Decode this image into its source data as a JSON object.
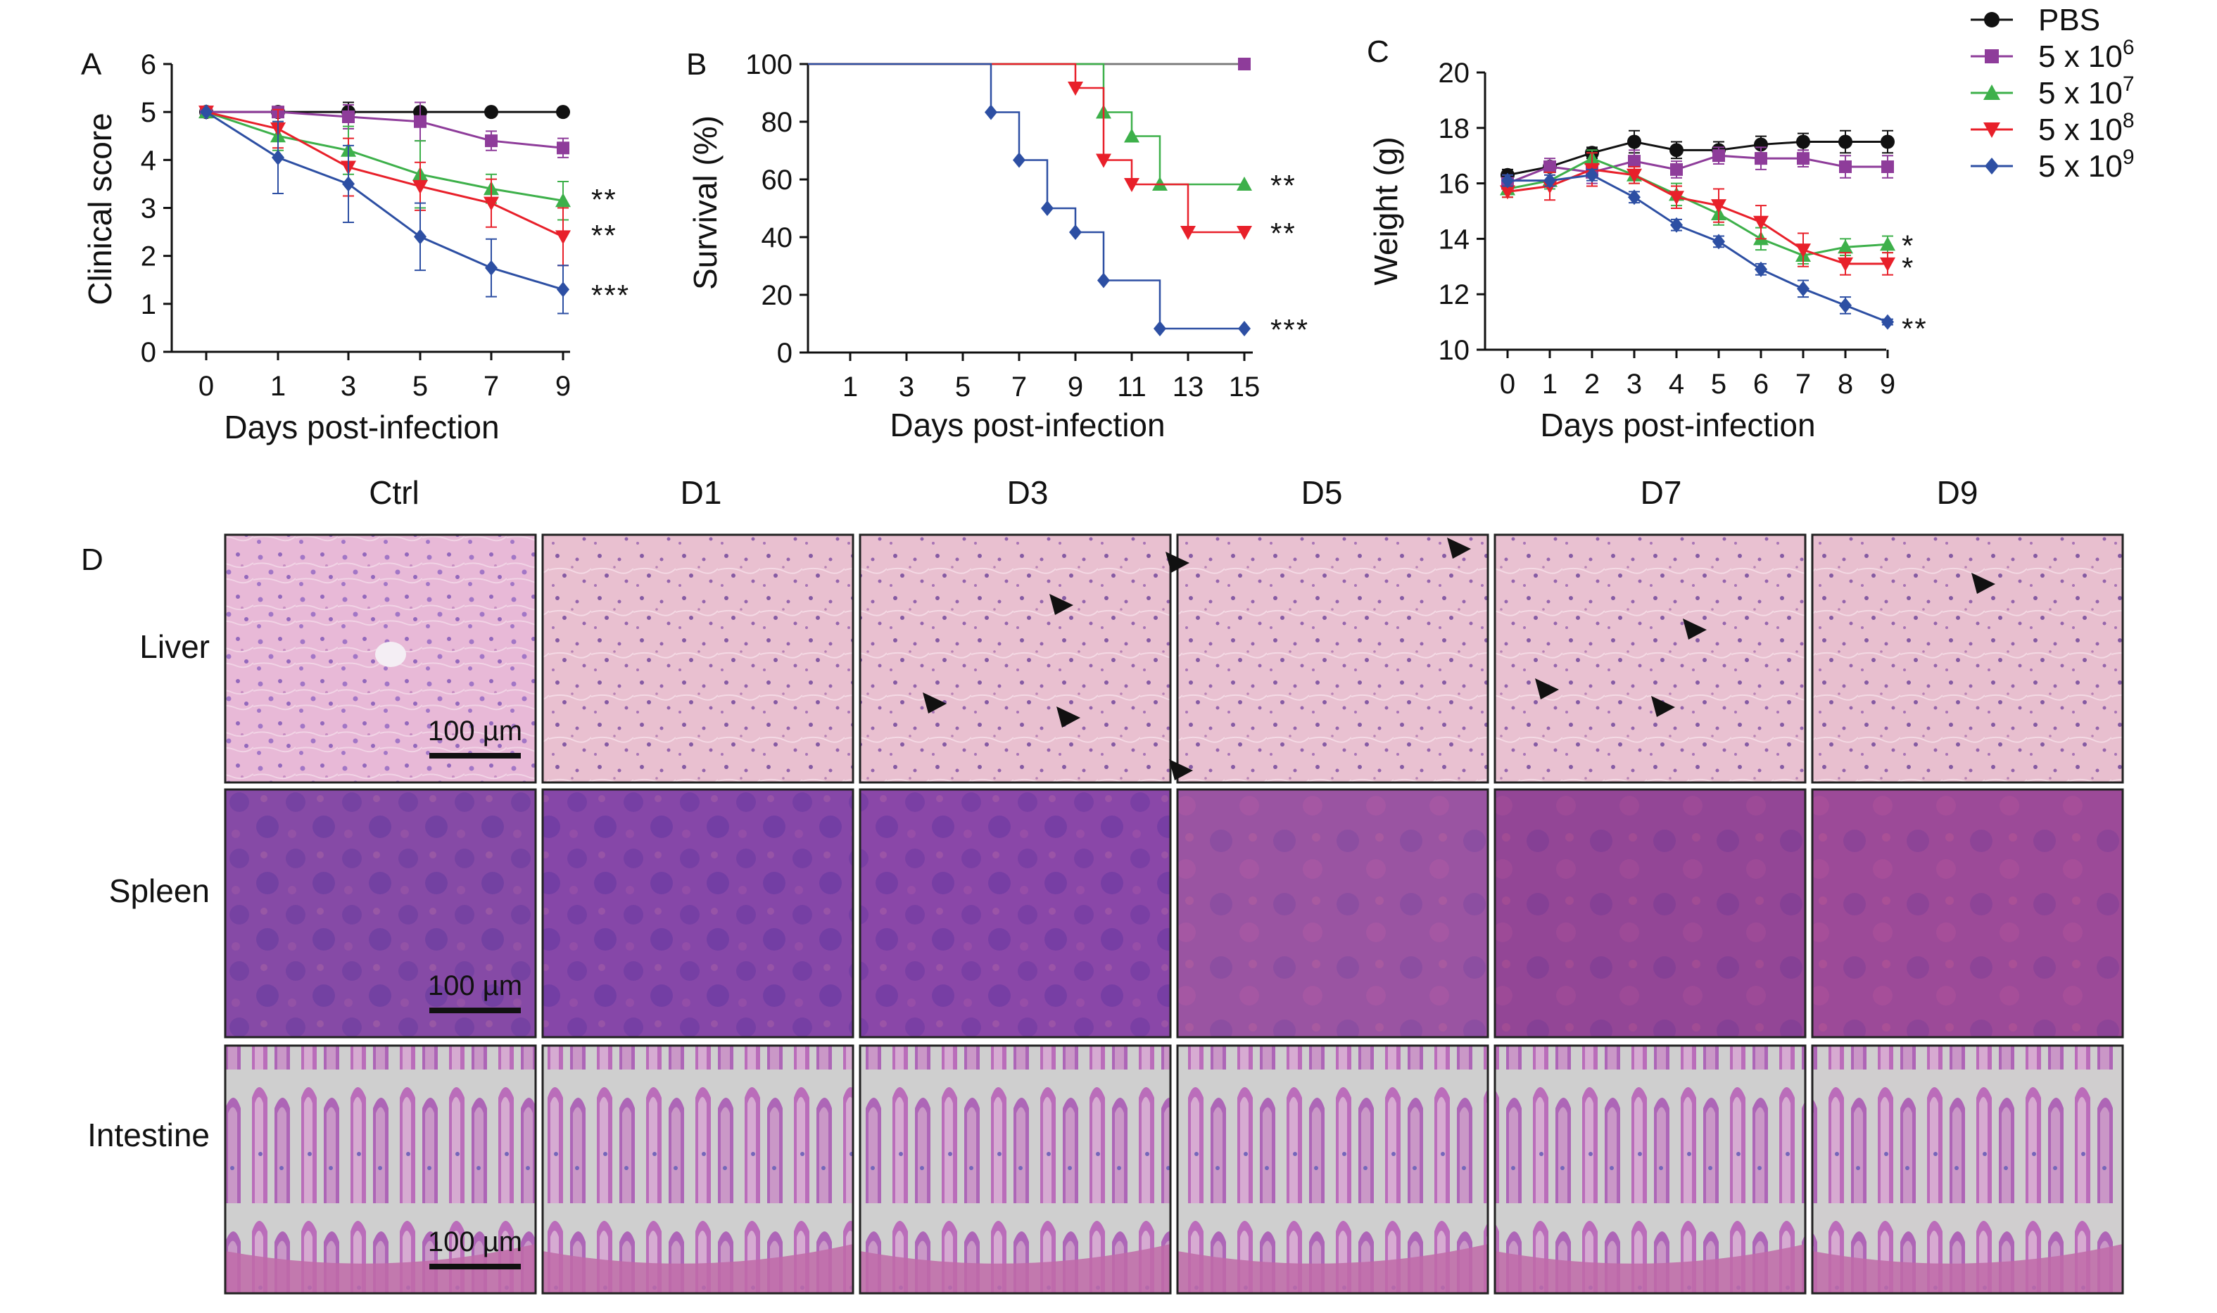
{
  "legend": {
    "entries": [
      {
        "series": "PBS",
        "label": "PBS",
        "color": "#111111",
        "marker": "circle"
      },
      {
        "series": "5x10^6",
        "label": "5 x 10",
        "sup": "6",
        "color": "#8e3c9a",
        "marker": "square"
      },
      {
        "series": "5x10^7",
        "label": "5 x 10",
        "sup": "7",
        "color": "#3db04a",
        "marker": "triangle-up"
      },
      {
        "series": "5x10^8",
        "label": "5 x 10",
        "sup": "8",
        "color": "#e8202a",
        "marker": "triangle-down"
      },
      {
        "series": "5x10^9",
        "label": "5 x 10",
        "sup": "9",
        "color": "#2d4fa3",
        "marker": "diamond"
      }
    ]
  },
  "chart_data": [
    {
      "panel": "A",
      "type": "line",
      "xlabel": "Days post-infection",
      "ylabel": "Clinical score",
      "x": [
        0,
        1,
        3,
        5,
        7,
        9
      ],
      "xticks": [
        "0",
        "1",
        "3",
        "5",
        "7",
        "9"
      ],
      "ylim": [
        0,
        6
      ],
      "yticks": [
        "0",
        "1",
        "2",
        "3",
        "4",
        "5",
        "6"
      ],
      "series": [
        {
          "key": "PBS",
          "values": [
            5,
            5,
            5,
            5,
            5,
            5
          ],
          "err": [
            0,
            0,
            0.2,
            0.2,
            0,
            0
          ]
        },
        {
          "key": "5x10^6",
          "values": [
            5,
            5,
            4.9,
            4.8,
            4.4,
            4.25
          ],
          "err": [
            0,
            0,
            0.25,
            0.4,
            0.2,
            0.2
          ]
        },
        {
          "key": "5x10^7",
          "values": [
            5,
            4.5,
            4.2,
            3.7,
            3.4,
            3.15
          ],
          "err": [
            0,
            0.3,
            0.5,
            0.7,
            0.3,
            0.4
          ]
        },
        {
          "key": "5x10^8",
          "values": [
            5,
            4.65,
            3.85,
            3.45,
            3.1,
            2.4
          ],
          "err": [
            0,
            0.4,
            0.6,
            0.5,
            0.5,
            0.6
          ]
        },
        {
          "key": "5x10^9",
          "values": [
            5,
            4.05,
            3.5,
            2.4,
            1.75,
            1.3
          ],
          "err": [
            0,
            0.75,
            0.8,
            0.7,
            0.6,
            0.5
          ]
        }
      ],
      "significance": [
        {
          "text": "**",
          "y": 3.2
        },
        {
          "text": "**",
          "y": 2.45
        },
        {
          "text": "***",
          "y": 1.2
        }
      ]
    },
    {
      "panel": "B",
      "type": "line",
      "step": true,
      "xlabel": "Days post-infection",
      "ylabel": "Survival (%)",
      "x_range": [
        0,
        15
      ],
      "xticks": [
        "1",
        "3",
        "5",
        "7",
        "9",
        "11",
        "13",
        "15"
      ],
      "ylim": [
        0,
        100
      ],
      "yticks": [
        "0",
        "20",
        "40",
        "60",
        "80",
        "100"
      ],
      "series": [
        {
          "key": "PBS",
          "steps": [
            [
              0,
              100
            ],
            [
              15,
              100
            ]
          ],
          "markers": []
        },
        {
          "key": "5x10^6",
          "steps": [
            [
              0,
              100
            ],
            [
              15,
              100
            ]
          ],
          "markers": [
            [
              15,
              100
            ]
          ]
        },
        {
          "key": "5x10^7",
          "steps": [
            [
              0,
              100
            ],
            [
              10,
              100
            ],
            [
              10,
              83.3
            ],
            [
              11,
              83.3
            ],
            [
              11,
              75
            ],
            [
              12,
              75
            ],
            [
              12,
              58.3
            ],
            [
              15,
              58.3
            ]
          ],
          "markers": [
            [
              10,
              83.3
            ],
            [
              11,
              75
            ],
            [
              12,
              58.3
            ],
            [
              15,
              58.3
            ]
          ]
        },
        {
          "key": "5x10^8",
          "steps": [
            [
              0,
              100
            ],
            [
              9,
              100
            ],
            [
              9,
              91.7
            ],
            [
              10,
              91.7
            ],
            [
              10,
              66.7
            ],
            [
              11,
              66.7
            ],
            [
              11,
              58.3
            ],
            [
              13,
              58.3
            ],
            [
              13,
              41.7
            ],
            [
              15,
              41.7
            ]
          ],
          "markers": [
            [
              9,
              91.7
            ],
            [
              10,
              66.7
            ],
            [
              11,
              58.3
            ],
            [
              13,
              41.7
            ],
            [
              15,
              41.7
            ]
          ]
        },
        {
          "key": "5x10^9",
          "steps": [
            [
              0,
              100
            ],
            [
              6,
              100
            ],
            [
              6,
              83.3
            ],
            [
              7,
              83.3
            ],
            [
              7,
              66.7
            ],
            [
              8,
              66.7
            ],
            [
              8,
              50
            ],
            [
              9,
              50
            ],
            [
              9,
              41.7
            ],
            [
              10,
              41.7
            ],
            [
              10,
              25
            ],
            [
              12,
              25
            ],
            [
              12,
              8.3
            ],
            [
              15,
              8.3
            ]
          ],
          "markers": [
            [
              6,
              83.3
            ],
            [
              7,
              66.7
            ],
            [
              8,
              50
            ],
            [
              9,
              41.7
            ],
            [
              10,
              25
            ],
            [
              12,
              8.3
            ],
            [
              15,
              8.3
            ]
          ]
        }
      ],
      "significance": [
        {
          "text": "**",
          "y": 58.3
        },
        {
          "text": "**",
          "y": 41.7
        },
        {
          "text": "***",
          "y": 8.3
        }
      ]
    },
    {
      "panel": "C",
      "type": "line",
      "xlabel": "Days post-infection",
      "ylabel": "Weight (g)",
      "x": [
        0,
        1,
        2,
        3,
        4,
        5,
        6,
        7,
        8,
        9
      ],
      "xticks": [
        "0",
        "1",
        "2",
        "3",
        "4",
        "5",
        "6",
        "7",
        "8",
        "9"
      ],
      "ylim": [
        10,
        20
      ],
      "yticks": [
        "10",
        "12",
        "14",
        "16",
        "18",
        "20"
      ],
      "series": [
        {
          "key": "PBS",
          "values": [
            16.3,
            16.6,
            17.1,
            17.5,
            17.2,
            17.2,
            17.4,
            17.5,
            17.5,
            17.5
          ],
          "err": [
            0.2,
            0.2,
            0.2,
            0.4,
            0.3,
            0.3,
            0.3,
            0.3,
            0.4,
            0.4
          ]
        },
        {
          "key": "5x10^6",
          "values": [
            16.0,
            16.6,
            16.4,
            16.8,
            16.5,
            17.0,
            16.9,
            16.9,
            16.6,
            16.6
          ],
          "err": [
            0.3,
            0.3,
            0.4,
            0.4,
            0.3,
            0.3,
            0.4,
            0.3,
            0.4,
            0.4
          ]
        },
        {
          "key": "5x10^7",
          "values": [
            15.8,
            16.1,
            16.9,
            16.3,
            15.6,
            14.9,
            14.0,
            13.4,
            13.7,
            13.8
          ],
          "err": [
            0.3,
            0.3,
            0.3,
            0.3,
            0.4,
            0.4,
            0.4,
            0.3,
            0.3,
            0.3
          ]
        },
        {
          "key": "5x10^8",
          "values": [
            15.7,
            15.9,
            16.5,
            16.3,
            15.5,
            15.2,
            14.6,
            13.6,
            13.1,
            13.1
          ],
          "err": [
            0.2,
            0.5,
            0.6,
            0.3,
            0.4,
            0.6,
            0.6,
            0.6,
            0.4,
            0.4
          ]
        },
        {
          "key": "5x10^9",
          "values": [
            16.1,
            16.1,
            16.3,
            15.5,
            14.5,
            13.9,
            12.9,
            12.2,
            11.6,
            11.0
          ],
          "err": [
            0.2,
            0.2,
            0.2,
            0.2,
            0.2,
            0.2,
            0.2,
            0.3,
            0.3,
            0.1
          ]
        }
      ],
      "significance": [
        {
          "text": "*",
          "y": 13.8
        },
        {
          "text": "*",
          "y": 13.0
        },
        {
          "text": "**",
          "y": 10.8
        }
      ]
    }
  ],
  "histology": {
    "panel_letter": "D",
    "columns": [
      "Ctrl",
      "D1",
      "D3",
      "D5",
      "D7",
      "D9"
    ],
    "rows": [
      "Liver",
      "Spleen",
      "Intestine"
    ],
    "scale_bar": "100 µm"
  }
}
